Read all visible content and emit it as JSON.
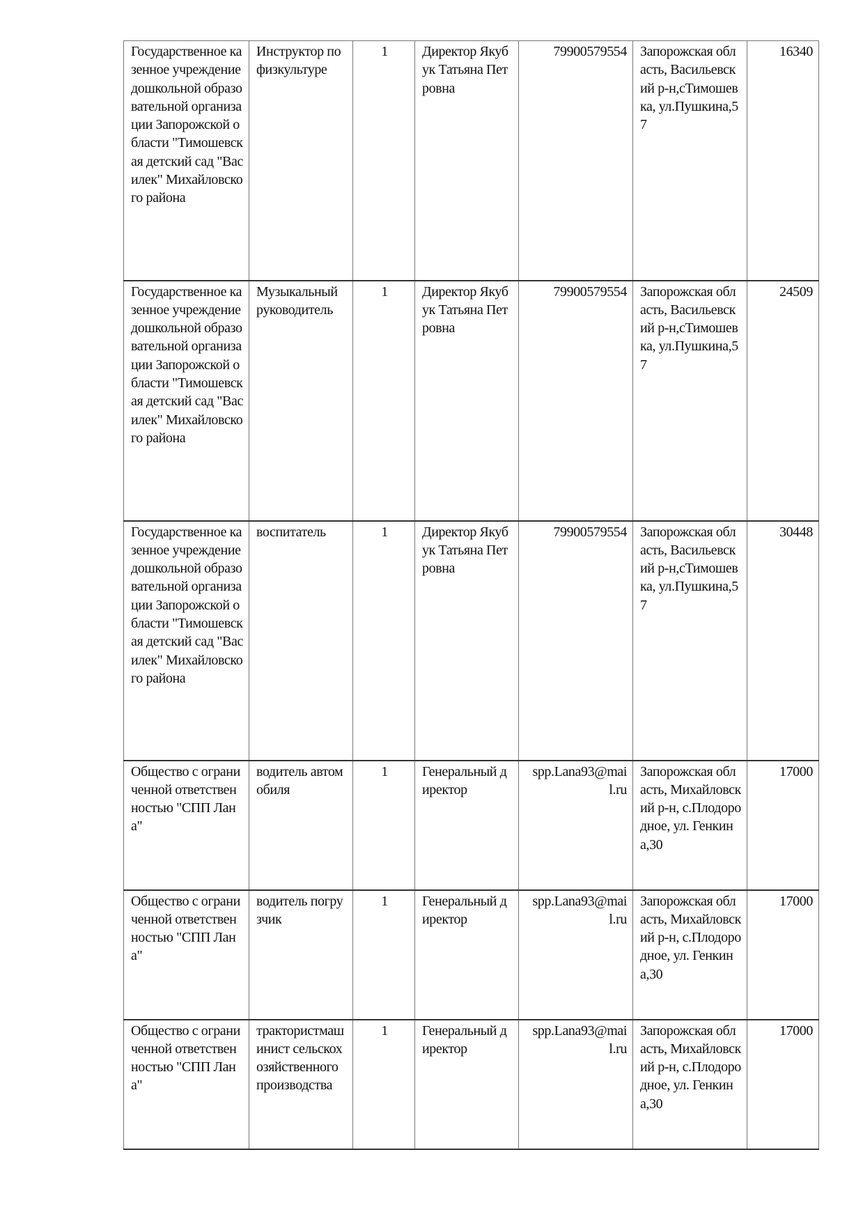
{
  "table": {
    "rows": [
      {
        "organization": "Государственное казенное учреждение дошкольной образовательной организации Запорожской области \"Тимошевская детский сад \"Василек\" Михайловского района",
        "position": "Инструктор по физкультуре",
        "count": "1",
        "contact_person": "Директор Якубук Татьяна Петровна",
        "contact": "79900579554",
        "address": "Запорожская область, Васильевский р-н,сТимошевка, ул.Пушкина,57",
        "salary": "16340"
      },
      {
        "organization": "Государственное казенное учреждение дошкольной образовательной организации Запорожской области \"Тимошевская детский сад \"Василек\" Михайловского района",
        "position": "Музыкальный руководитель",
        "count": "1",
        "contact_person": "Директор Якубук Татьяна Петровна",
        "contact": "79900579554",
        "address": "Запорожская область, Васильевский р-н,сТимошевка, ул.Пушкина,57",
        "salary": "24509"
      },
      {
        "organization": "Государственное казенное учреждение дошкольной образовательной организации Запорожской области \"Тимошевская детский сад \"Василек\" Михайловского района",
        "position": "воспитатель",
        "count": "1",
        "contact_person": "Директор Якубук Татьяна Петровна",
        "contact": "79900579554",
        "address": "Запорожская область, Васильевский р-н,сТимошевка, ул.Пушкина,57",
        "salary": "30448"
      },
      {
        "organization": "Общество с ограниченной ответственностью \"СПП Лана\"",
        "position": "водитель автомобиля",
        "count": "1",
        "contact_person": "Генеральный директор",
        "contact": "spp.Lana93@mail.ru",
        "address": "Запорожская область, Михайловский р-н, с.Плодородное, ул. Генкина,30",
        "salary": "17000"
      },
      {
        "organization": "Общество с ограниченной ответственностью \"СПП Лана\"",
        "position": "водитель погрузчик",
        "count": "1",
        "contact_person": "Генеральный директор",
        "contact": "spp.Lana93@mail.ru",
        "address": "Запорожская область, Михайловский р-н, с.Плодородное, ул. Генкина,30",
        "salary": "17000"
      },
      {
        "organization": "Общество с ограниченной ответственностью \"СПП Лана\"",
        "position": "трактористмашинист сельскохозяйственного производства",
        "count": "1",
        "contact_person": "Генеральный директор",
        "contact": "spp.Lana93@mail.ru",
        "address": "Запорожская область, Михайловский р-н, с.Плодородное, ул. Генкина,30",
        "salary": "17000"
      }
    ]
  }
}
